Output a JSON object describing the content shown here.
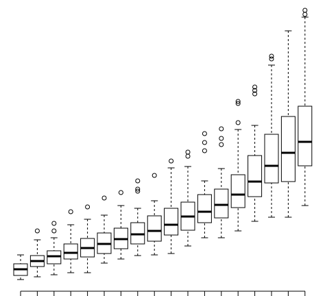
{
  "chart_data": {
    "type": "box",
    "categories": [
      null,
      null,
      null,
      null,
      null,
      null,
      null,
      null,
      null,
      null,
      null,
      null,
      null,
      null,
      null,
      null,
      null,
      null
    ],
    "ylim": [
      0,
      432
    ],
    "color": "#000000",
    "boxes": [
      {
        "min": 24,
        "q1": 30,
        "median": 39,
        "q3": 47,
        "max": 60,
        "outliers": []
      },
      {
        "min": 28,
        "q1": 43,
        "median": 51,
        "q3": 59,
        "max": 82,
        "outliers": [
          95
        ]
      },
      {
        "min": 31,
        "q1": 47,
        "median": 58,
        "q3": 66,
        "max": 85,
        "outliers": [
          106,
          95
        ]
      },
      {
        "min": 34,
        "q1": 54,
        "median": 63,
        "q3": 76,
        "max": 104,
        "outliers": [
          123
        ]
      },
      {
        "min": 34,
        "q1": 57,
        "median": 70,
        "q3": 84,
        "max": 112,
        "outliers": [
          130
        ]
      },
      {
        "min": 48,
        "q1": 62,
        "median": 76,
        "q3": 92,
        "max": 118,
        "outliers": [
          143
        ]
      },
      {
        "min": 54,
        "q1": 69,
        "median": 83,
        "q3": 99,
        "max": 132,
        "outliers": [
          151
        ]
      },
      {
        "min": 59,
        "q1": 76,
        "median": 90,
        "q3": 107,
        "max": 128,
        "outliers": [
          168,
          156,
          153
        ]
      },
      {
        "min": 60,
        "q1": 80,
        "median": 95,
        "q3": 117,
        "max": 139,
        "outliers": [
          176
        ]
      },
      {
        "min": 62,
        "q1": 89,
        "median": 104,
        "q3": 128,
        "max": 187,
        "outliers": [
          197
        ]
      },
      {
        "min": 73,
        "q1": 96,
        "median": 116,
        "q3": 137,
        "max": 189,
        "outliers": [
          210,
          204
        ]
      },
      {
        "min": 85,
        "q1": 107,
        "median": 123,
        "q3": 148,
        "max": 168,
        "outliers": [
          237,
          224,
          212
        ]
      },
      {
        "min": 85,
        "q1": 114,
        "median": 133,
        "q3": 156,
        "max": 186,
        "outliers": [
          244,
          230,
          221
        ]
      },
      {
        "min": 95,
        "q1": 129,
        "median": 148,
        "q3": 177,
        "max": 243,
        "outliers": [
          284,
          281,
          253
        ]
      },
      {
        "min": 109,
        "q1": 145,
        "median": 167,
        "q3": 205,
        "max": 249,
        "outliers": [
          305,
          300,
          295
        ]
      },
      {
        "min": 115,
        "q1": 165,
        "median": 190,
        "q3": 236,
        "max": 337,
        "outliers": [
          350,
          346
        ]
      },
      {
        "min": 115,
        "q1": 167,
        "median": 209,
        "q3": 262,
        "max": 387,
        "outliers": []
      },
      {
        "min": 132,
        "q1": 190,
        "median": 225,
        "q3": 277,
        "max": 407,
        "outliers": [
          417,
          411
        ]
      }
    ]
  }
}
